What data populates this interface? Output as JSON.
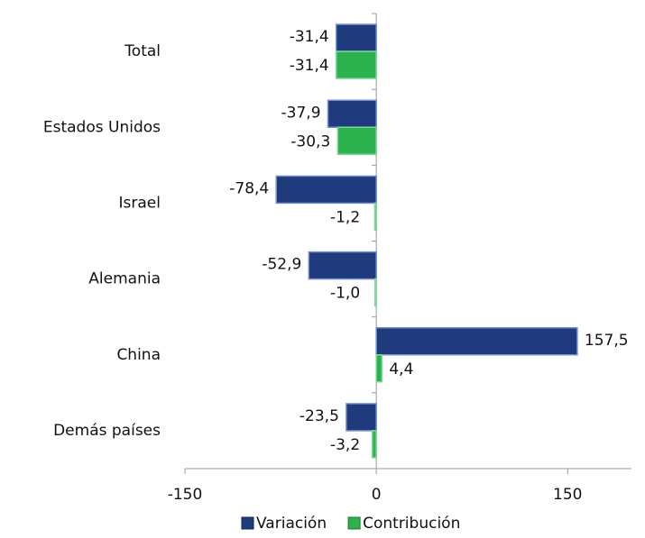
{
  "chart_data": {
    "type": "bar",
    "orientation": "horizontal",
    "categories": [
      "Total",
      "Estados Unidos",
      "Israel",
      "Alemania",
      "China",
      "Demás países"
    ],
    "series": [
      {
        "name": "Variación",
        "color": "#1f3a7d",
        "values": [
          -31.4,
          -37.9,
          -78.4,
          -52.9,
          157.5,
          -23.5
        ],
        "value_labels": [
          "-31,4",
          "-37,9",
          "-78,4",
          "-52,9",
          "157,5",
          "-23,5"
        ]
      },
      {
        "name": "Contribución",
        "color": "#2bb24c",
        "values": [
          -31.4,
          -30.3,
          -1.2,
          -1.0,
          4.4,
          -3.2
        ],
        "value_labels": [
          "-31,4",
          "-30,3",
          "-1,2",
          "-1,0",
          "4,4",
          "-3,2"
        ]
      }
    ],
    "xlim": [
      -150,
      200
    ],
    "xticks": [
      -150,
      0,
      150
    ],
    "legend": "bottom"
  }
}
